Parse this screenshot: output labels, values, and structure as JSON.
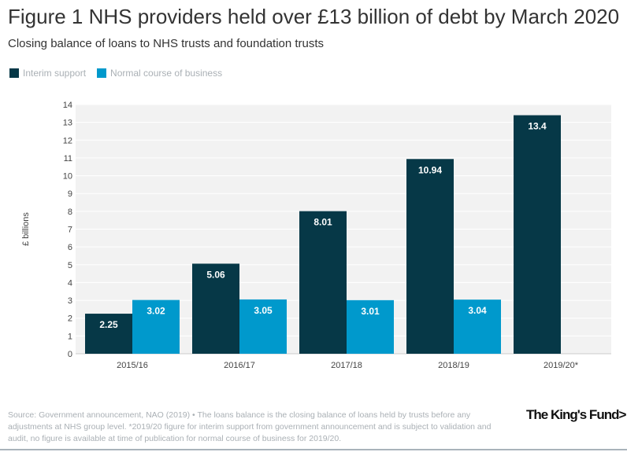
{
  "title": "Figure 1 NHS providers held over £13 billion of debt by March 2020",
  "subtitle": "Closing balance of loans to NHS trusts and foundation trusts",
  "source": "Source: Government announcement, NAO (2019) • The loans balance is the closing balance of loans held by trusts before any adjustments at NHS group level. *2019/20 figure for interim support from government announcement and is subject to validation and audit, no figure is available at time of publication for normal course of business for 2019/20.",
  "logo": "The King's Fund>",
  "chart_data": {
    "type": "bar",
    "title": "Figure 1 NHS providers held over £13 billion of debt by March 2020",
    "subtitle": "Closing balance of loans to NHS trusts and foundation trusts",
    "categories": [
      "2015/16",
      "2016/17",
      "2017/18",
      "2018/19",
      "2019/20*"
    ],
    "series": [
      {
        "name": "Interim support",
        "color": "#063847",
        "values": [
          2.25,
          5.06,
          8.01,
          10.94,
          13.4
        ]
      },
      {
        "name": "Normal course of business",
        "color": "#0099cc",
        "values": [
          3.02,
          3.05,
          3.01,
          3.04,
          null
        ]
      }
    ],
    "ylabel": "£ billions",
    "ylim": [
      0,
      14
    ],
    "yticks": [
      0,
      1,
      2,
      3,
      4,
      5,
      6,
      7,
      8,
      9,
      10,
      11,
      12,
      13,
      14
    ],
    "grid": true,
    "legend": "top-left"
  }
}
